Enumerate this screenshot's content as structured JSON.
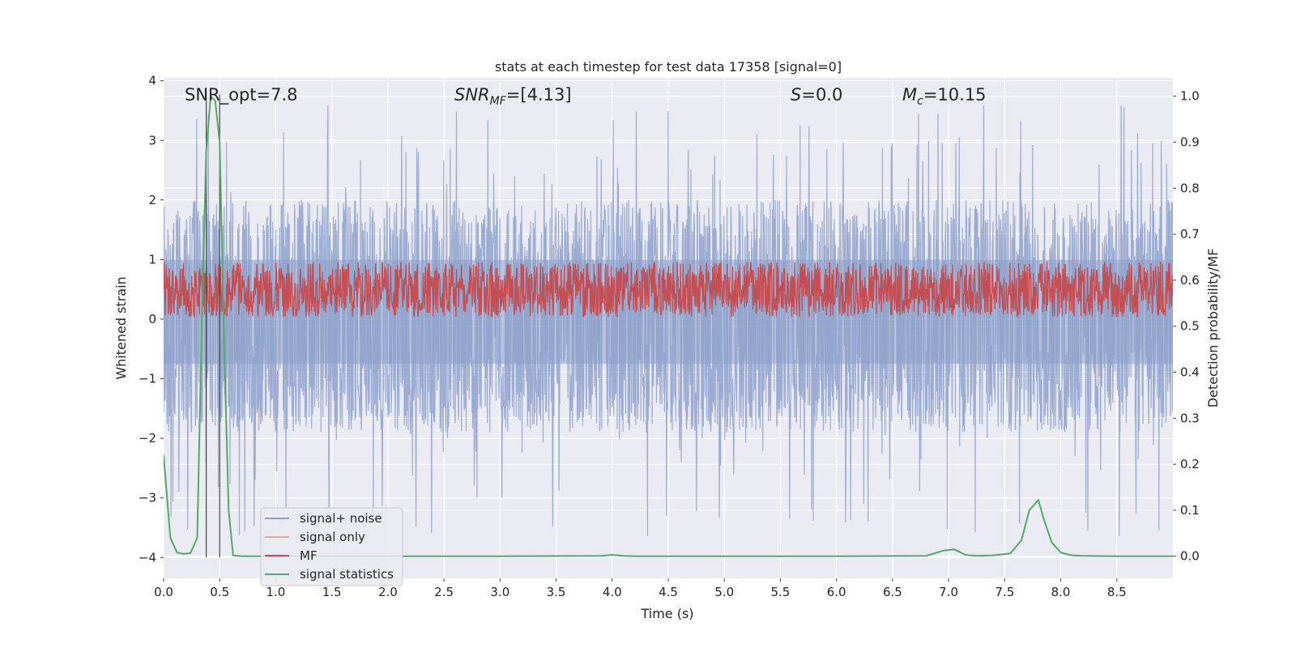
{
  "chart_data": {
    "type": "line",
    "title": "stats at each timestep for test data 17358 [signal=0]",
    "xlabel": "Time (s)",
    "ylabel_left": "Whitened strain",
    "ylabel_right": "Detection probability/MF",
    "xlim": [
      0.0,
      9.0
    ],
    "ylim_left": [
      -4.35,
      4.05
    ],
    "ylim_right": [
      -0.048,
      1.04
    ],
    "x_ticks": [
      "0.0",
      "0.5",
      "1.0",
      "1.5",
      "2.0",
      "2.5",
      "3.0",
      "3.5",
      "4.0",
      "4.5",
      "5.0",
      "5.5",
      "6.0",
      "6.5",
      "7.0",
      "7.5",
      "8.0",
      "8.5"
    ],
    "y_ticks_left": [
      "4",
      "3",
      "2",
      "1",
      "0",
      "−1",
      "−2",
      "−3",
      "−4"
    ],
    "y_ticks_right": [
      "1.0",
      "0.9",
      "0.8",
      "0.7",
      "0.6",
      "0.5",
      "0.4",
      "0.3",
      "0.2",
      "0.1",
      "0.0"
    ],
    "grid": true,
    "legend_position": "lower-left",
    "annotations": {
      "snr_opt": "SNR_opt=7.8",
      "snr_mf_label": "SNR",
      "snr_mf_sub": "MF",
      "snr_mf_value": "=[4.13]",
      "s_label": "S",
      "s_value": "=0.0",
      "mc_label": "M",
      "mc_sub": "c",
      "mc_value": "=10.15"
    },
    "vertical_lines_x": [
      0.38,
      0.5
    ],
    "series": [
      {
        "name": "signal+ noise",
        "color": "#8da0cb",
        "axis": "left",
        "envelope_upper": 2.0,
        "envelope_lower": -1.9,
        "peak_max": 3.65,
        "peak_min": -3.65
      },
      {
        "name": "signal only",
        "color": "#e9a98a",
        "axis": "left",
        "values": []
      },
      {
        "name": "MF",
        "color": "#c44e52",
        "axis": "right",
        "band_min": 0.52,
        "band_max": 0.64
      },
      {
        "name": "signal statistics",
        "color": "#55a868",
        "axis": "right",
        "x": [
          0.0,
          0.06,
          0.12,
          0.18,
          0.24,
          0.3,
          0.34,
          0.38,
          0.42,
          0.46,
          0.5,
          0.54,
          0.58,
          0.62,
          0.7,
          1.0,
          2.0,
          3.0,
          3.9,
          4.0,
          4.1,
          4.2,
          5.0,
          6.0,
          6.8,
          6.95,
          7.05,
          7.15,
          7.25,
          7.4,
          7.55,
          7.65,
          7.72,
          7.8,
          7.85,
          7.92,
          8.0,
          8.1,
          8.2,
          8.5,
          9.0
        ],
        "values": [
          0.22,
          0.04,
          0.008,
          0.005,
          0.007,
          0.04,
          0.5,
          0.88,
          1.0,
          0.99,
          0.9,
          0.45,
          0.1,
          0.002,
          0.0,
          0.0,
          0.0,
          0.0,
          0.001,
          0.003,
          0.001,
          0.0,
          0.0,
          0.0,
          0.001,
          0.012,
          0.015,
          0.003,
          0.001,
          0.002,
          0.006,
          0.035,
          0.1,
          0.122,
          0.08,
          0.03,
          0.008,
          0.002,
          0.001,
          0.0,
          0.0
        ]
      }
    ]
  }
}
